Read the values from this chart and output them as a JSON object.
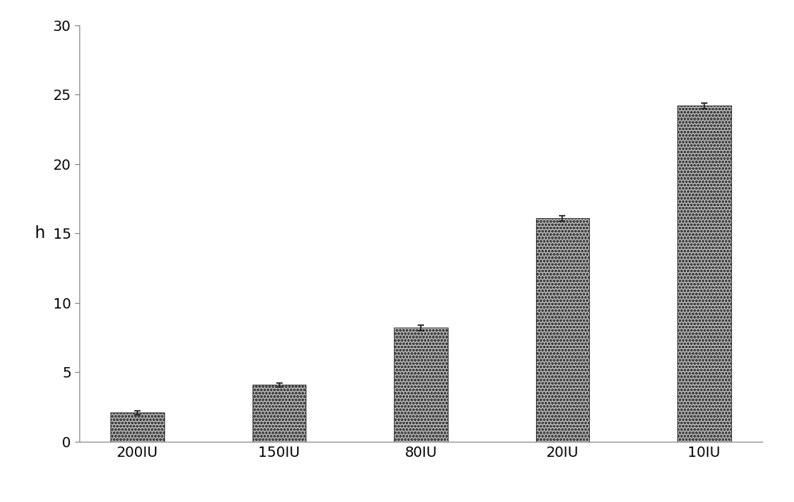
{
  "categories": [
    "200IU",
    "150IU",
    "80IU",
    "20IU",
    "10IU"
  ],
  "values": [
    2.1,
    4.1,
    8.2,
    16.1,
    24.2
  ],
  "errors": [
    0.15,
    0.15,
    0.2,
    0.2,
    0.2
  ],
  "bar_color": "#b8b8b8",
  "bar_edgecolor": "#444444",
  "bar_width": 0.38,
  "ylabel": "h",
  "ylim": [
    0,
    30
  ],
  "yticks": [
    0,
    5,
    10,
    15,
    20,
    25,
    30
  ],
  "background_color": "#ffffff",
  "ylabel_fontsize": 15,
  "tick_fontsize": 13,
  "xlabel_fontsize": 13,
  "error_capsize": 3,
  "error_linewidth": 1.2,
  "error_color": "#222222",
  "spine_color": "#888888"
}
